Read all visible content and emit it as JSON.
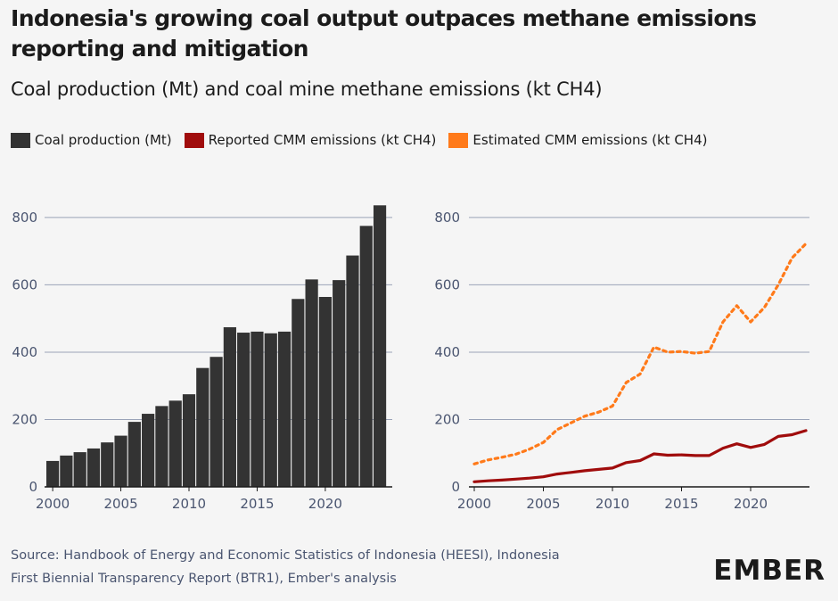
{
  "header": {
    "title": "Indonesia's growing coal output outpaces methane emissions reporting and mitigation",
    "subtitle": "Coal production (Mt) and coal mine methane emissions (kt CH4)"
  },
  "legend": [
    {
      "label": "Coal production (Mt)",
      "color": "#333333"
    },
    {
      "label": "Reported CMM emissions (kt CH4)",
      "color": "#a00c0c"
    },
    {
      "label": "Estimated CMM emissions (kt CH4)",
      "color": "#ff7a1a"
    }
  ],
  "footer": {
    "source_line1": "Source: Handbook of Energy and Economic Statistics of Indonesia (HEESI), Indonesia",
    "source_line2": "First Biennial Transparency Report (BTR1), Ember's analysis",
    "logo": "EMBER"
  },
  "chart_data": [
    {
      "type": "bar",
      "series": [
        {
          "name": "Coal production (Mt)",
          "color": "#333333",
          "values": [
            77,
            93,
            103,
            114,
            132,
            152,
            193,
            217,
            240,
            256,
            275,
            353,
            386,
            474,
            458,
            461,
            456,
            461,
            558,
            616,
            564,
            614,
            687,
            775,
            836
          ]
        }
      ],
      "categories": [
        2000,
        2001,
        2002,
        2003,
        2004,
        2005,
        2006,
        2007,
        2008,
        2009,
        2010,
        2011,
        2012,
        2013,
        2014,
        2015,
        2016,
        2017,
        2018,
        2019,
        2020,
        2021,
        2022,
        2023,
        2024
      ],
      "xticks": [
        "2000",
        "2005",
        "2010",
        "2015",
        "2020"
      ],
      "yticks": [
        "0",
        "200",
        "400",
        "600",
        "800"
      ],
      "ylim": [
        0,
        850
      ],
      "grid": true
    },
    {
      "type": "line",
      "x": [
        2000,
        2001,
        2002,
        2003,
        2004,
        2005,
        2006,
        2007,
        2008,
        2009,
        2010,
        2011,
        2012,
        2013,
        2014,
        2015,
        2016,
        2017,
        2018,
        2019,
        2020,
        2021,
        2022,
        2023,
        2024
      ],
      "series": [
        {
          "name": "Reported CMM emissions (kt CH4)",
          "color": "#a00c0c",
          "style": "solid",
          "values": [
            15,
            18,
            20,
            23,
            26,
            30,
            38,
            43,
            48,
            52,
            56,
            72,
            78,
            98,
            94,
            95,
            93,
            93,
            115,
            128,
            117,
            126,
            150,
            155,
            167
          ]
        },
        {
          "name": "Estimated CMM emissions (kt CH4)",
          "color": "#ff7a1a",
          "style": "dotted",
          "values": [
            68,
            80,
            88,
            97,
            112,
            132,
            170,
            190,
            210,
            222,
            240,
            310,
            335,
            415,
            400,
            402,
            397,
            402,
            490,
            538,
            490,
            533,
            600,
            680,
            722
          ]
        }
      ],
      "xticks": [
        "2000",
        "2005",
        "2010",
        "2015",
        "2020"
      ],
      "yticks": [
        "0",
        "200",
        "400",
        "600",
        "800"
      ],
      "ylim": [
        0,
        850
      ],
      "grid": true
    }
  ]
}
